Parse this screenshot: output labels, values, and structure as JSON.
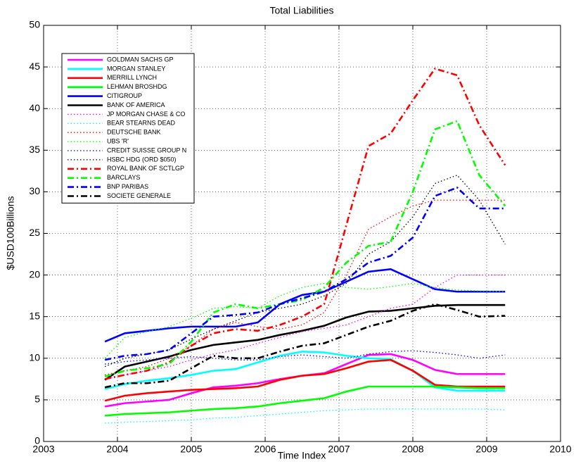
{
  "chart_data": {
    "type": "line",
    "title": "Total Liabilities",
    "x_label": "Time Index",
    "y_label": "$USD100Billions",
    "xlim": [
      2003,
      2010
    ],
    "xticks": [
      2003,
      2004,
      2005,
      2006,
      2007,
      2008,
      2009,
      2010
    ],
    "ylim": [
      0,
      50
    ],
    "yticks": [
      0,
      5,
      10,
      15,
      20,
      25,
      30,
      35,
      40,
      45,
      50
    ],
    "grid": true,
    "legend": "upper left",
    "x": [
      2003.83,
      2004.1,
      2004.4,
      2004.7,
      2005.0,
      2005.3,
      2005.6,
      2005.9,
      2006.2,
      2006.5,
      2006.8,
      2007.1,
      2007.4,
      2007.7,
      2008.0,
      2008.3,
      2008.6,
      2008.9,
      2009.25
    ],
    "series": [
      {
        "name": "GOLDMAN SACHS GP",
        "color": "#ff00ff",
        "dash": "solid",
        "values": [
          4.2,
          4.6,
          4.8,
          5.0,
          5.8,
          6.5,
          6.7,
          7.0,
          7.5,
          7.9,
          8.2,
          9.3,
          10.4,
          10.5,
          9.8,
          8.6,
          8.1,
          8.1,
          8.1
        ]
      },
      {
        "name": "MORGAN STANLEY",
        "color": "#00ffff",
        "dash": "solid",
        "values": [
          6.3,
          6.9,
          7.3,
          7.6,
          8.0,
          8.5,
          8.7,
          9.5,
          10.3,
          10.8,
          10.7,
          10.3,
          10.0,
          9.9,
          8.5,
          6.5,
          6.1,
          6.1,
          6.1
        ]
      },
      {
        "name": "MERRILL LYNCH",
        "color": "#ff0000",
        "dash": "solid",
        "values": [
          4.9,
          5.5,
          5.8,
          6.0,
          6.2,
          6.3,
          6.4,
          6.6,
          7.4,
          7.9,
          8.1,
          8.8,
          9.6,
          9.8,
          8.5,
          6.8,
          6.6,
          6.6,
          6.6
        ]
      },
      {
        "name": "LEHMAN BROSHDG",
        "color": "#00ff00",
        "dash": "solid",
        "values": [
          3.1,
          3.3,
          3.4,
          3.5,
          3.7,
          3.9,
          4.0,
          4.2,
          4.6,
          4.9,
          5.2,
          6.0,
          6.6,
          6.6,
          6.6,
          6.6,
          6.5,
          6.4,
          6.4
        ]
      },
      {
        "name": "CITIGROUP",
        "color": "#0000ff",
        "dash": "solid",
        "values": [
          12.0,
          13.0,
          13.3,
          13.6,
          13.8,
          13.8,
          13.8,
          14.3,
          16.5,
          17.6,
          18.0,
          19.2,
          20.4,
          20.7,
          19.5,
          18.3,
          18.0,
          18.0,
          18.0
        ]
      },
      {
        "name": "BANK OF AMERICA",
        "color": "#000000",
        "dash": "solid",
        "values": [
          7.4,
          9.0,
          9.6,
          10.2,
          11.0,
          11.6,
          11.9,
          12.2,
          12.8,
          13.3,
          13.9,
          14.9,
          15.6,
          15.7,
          16.0,
          16.3,
          16.4,
          16.4,
          16.4
        ]
      },
      {
        "name": "JP MORGAN CHASE & CO",
        "color": "#ff00ff",
        "dash": "dotted",
        "values": [
          7.5,
          8.0,
          8.5,
          9.0,
          9.8,
          10.5,
          11.0,
          11.8,
          12.5,
          13.2,
          13.6,
          14.0,
          15.0,
          16.0,
          16.5,
          18.5,
          20.0,
          20.0,
          20.0
        ]
      },
      {
        "name": "BEAR STEARNS DEAD",
        "color": "#00ffff",
        "dash": "dotted",
        "values": [
          2.2,
          2.3,
          2.4,
          2.5,
          2.6,
          2.8,
          2.9,
          3.1,
          3.3,
          3.5,
          3.7,
          3.8,
          3.9,
          3.9,
          3.9,
          3.9,
          3.9,
          3.9,
          3.8
        ]
      },
      {
        "name": "DEUTSCHE BANK",
        "color": "#ff0000",
        "dash": "dotted",
        "values": [
          8.0,
          8.5,
          9.0,
          10.0,
          11.5,
          13.5,
          14.3,
          13.8,
          13.5,
          14.0,
          15.5,
          20.0,
          25.5,
          27.0,
          28.3,
          29.0,
          29.0,
          29.0,
          29.0
        ]
      },
      {
        "name": "UBS 'R'",
        "color": "#00ff00",
        "dash": "dotted",
        "values": [
          10.0,
          12.5,
          13.2,
          13.8,
          14.8,
          16.0,
          16.2,
          16.0,
          17.5,
          18.5,
          19.0,
          18.5,
          18.3,
          18.6,
          19.0,
          18.5,
          18.2,
          18.1,
          18.0
        ]
      },
      {
        "name": "CREDIT SUISSE GROUP N",
        "color": "#0000ff",
        "dash": "dotted",
        "values": [
          9.3,
          9.6,
          9.8,
          10.0,
          10.2,
          10.0,
          9.8,
          9.8,
          10.2,
          10.4,
          10.2,
          10.0,
          10.5,
          10.8,
          10.9,
          10.7,
          10.4,
          10.0,
          10.4
        ]
      },
      {
        "name": "HSBC HDG (ORD $050)",
        "color": "#000000",
        "dash": "dotted",
        "values": [
          9.0,
          10.0,
          10.5,
          11.0,
          12.3,
          13.5,
          14.5,
          15.5,
          16.0,
          16.5,
          17.5,
          19.0,
          22.5,
          24.0,
          27.0,
          31.0,
          32.0,
          29.0,
          23.7
        ]
      },
      {
        "name": "ROYAL BANK OF SCTLGP",
        "color": "#ff0000",
        "dash": "dashdot",
        "values": [
          7.5,
          8.0,
          8.5,
          9.5,
          11.5,
          13.0,
          13.5,
          13.3,
          14.0,
          15.0,
          16.5,
          26.0,
          35.5,
          37.0,
          41.0,
          44.8,
          44.0,
          38.0,
          33.2
        ]
      },
      {
        "name": "BARCLAYS",
        "color": "#00ff00",
        "dash": "dashdot",
        "values": [
          7.8,
          8.5,
          8.8,
          9.3,
          12.0,
          15.5,
          16.5,
          16.0,
          16.5,
          17.0,
          18.5,
          21.5,
          23.5,
          24.0,
          30.0,
          37.5,
          38.5,
          32.0,
          28.3
        ]
      },
      {
        "name": "BNP PARIBAS",
        "color": "#0000ff",
        "dash": "dashdot",
        "values": [
          9.8,
          10.3,
          10.5,
          11.0,
          13.0,
          15.0,
          15.2,
          15.5,
          16.5,
          17.2,
          18.0,
          19.5,
          21.5,
          22.3,
          24.5,
          29.5,
          30.5,
          28.0,
          28.0
        ]
      },
      {
        "name": "SOCIETE GENERALE",
        "color": "#000000",
        "dash": "dashdot",
        "values": [
          6.5,
          7.0,
          7.0,
          7.3,
          8.8,
          10.3,
          10.0,
          10.0,
          10.8,
          11.5,
          11.8,
          12.8,
          13.8,
          14.5,
          15.7,
          16.5,
          15.8,
          15.0,
          15.1
        ]
      }
    ]
  }
}
